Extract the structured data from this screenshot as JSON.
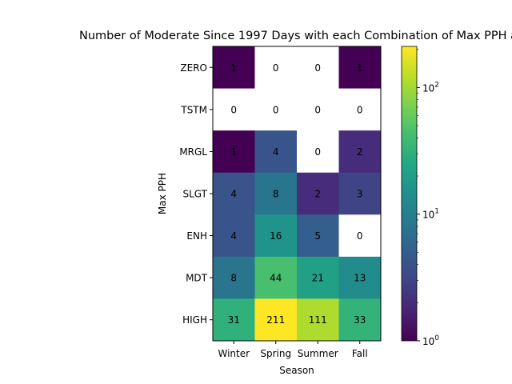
{
  "chart_data": {
    "type": "heatmap",
    "title": "Number of Moderate Since 1997 Days with each Combination of Max PPH a",
    "xlabel": "Season",
    "ylabel": "Max PPH",
    "x_categories": [
      "Winter",
      "Spring",
      "Summer",
      "Fall"
    ],
    "y_categories": [
      "ZERO",
      "TSTM",
      "MRGL",
      "SLGT",
      "ENH",
      "MDT",
      "HIGH"
    ],
    "values": [
      [
        1,
        0,
        0,
        1
      ],
      [
        0,
        0,
        0,
        0
      ],
      [
        1,
        4,
        0,
        2
      ],
      [
        4,
        8,
        2,
        3
      ],
      [
        4,
        16,
        5,
        0
      ],
      [
        8,
        44,
        21,
        13
      ],
      [
        31,
        211,
        111,
        33
      ]
    ],
    "zero_color": "#ffffff",
    "colormap": "viridis",
    "color_scale": "log",
    "color_range": [
      1,
      211
    ],
    "colorbar": {
      "scale": "log",
      "ticks": [
        {
          "value": 1,
          "base": "10",
          "exp": "0"
        },
        {
          "value": 10,
          "base": "10",
          "exp": "1"
        },
        {
          "value": 100,
          "base": "10",
          "exp": "2"
        }
      ]
    },
    "grid": false
  }
}
